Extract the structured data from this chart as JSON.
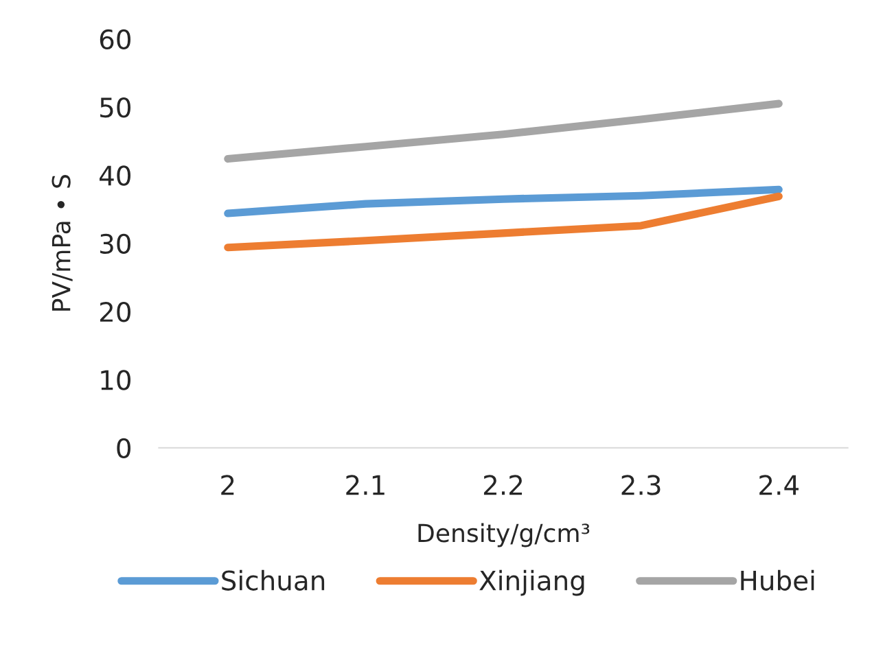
{
  "chart_data": {
    "type": "line",
    "xlabel": "Density/g/cm³",
    "ylabel": "PV/mPa • S",
    "categories": [
      "2",
      "2.1",
      "2.2",
      "2.3",
      "2.4"
    ],
    "series": [
      {
        "name": "Sichuan",
        "color": "#5b9bd5",
        "values": [
          34.4,
          35.8,
          36.5,
          37.0,
          37.9
        ]
      },
      {
        "name": "Xinjiang",
        "color": "#ed7d31",
        "values": [
          29.4,
          30.4,
          31.5,
          32.6,
          36.9
        ]
      },
      {
        "name": "Hubei",
        "color": "#a5a5a5",
        "values": [
          42.4,
          44.2,
          46.0,
          48.2,
          50.5
        ]
      }
    ],
    "ylim": [
      0,
      60
    ],
    "yticks": [
      0,
      10,
      20,
      30,
      40,
      50,
      60
    ],
    "grid": false,
    "legend": "bottom",
    "marker": "none",
    "line_style": "solid"
  }
}
